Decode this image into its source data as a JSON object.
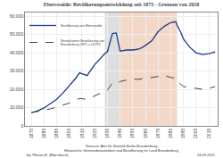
{
  "chart_data": {
    "type": "line",
    "title": "Eberswalde: Bevölkerungsentwicklung seit 1875 - Grenzen von 2020",
    "x": [
      1875,
      1880,
      1885,
      1890,
      1895,
      1900,
      1905,
      1910,
      1913,
      1919,
      1925,
      1930,
      1933,
      1935,
      1939,
      1942,
      1945,
      1946,
      1950,
      1955,
      1960,
      1964,
      1970,
      1975,
      1980,
      1985,
      1989,
      1990,
      1993,
      1995,
      2000,
      2005,
      2010,
      2015,
      2017,
      2020
    ],
    "series": [
      {
        "name": "Bevölkerung von Eberswalde",
        "color": "#1a3a8a",
        "line_style": "solid",
        "values": [
          7200,
          8200,
          9800,
          12000,
          14500,
          18000,
          22000,
          26000,
          29000,
          27500,
          33500,
          37500,
          39500,
          40500,
          50500,
          50800,
          41000,
          41000,
          41500,
          41500,
          42000,
          43500,
          46500,
          51500,
          54500,
          56500,
          57000,
          55000,
          51000,
          47500,
          43000,
          40000,
          39000,
          39500,
          40000,
          40500
        ]
      },
      {
        "name": "Normalisierte Bevölkerung von\nBrandenburg 1875 = 14.970",
        "color": "#444444",
        "line_style": "dashed",
        "values": [
          7200,
          7800,
          8500,
          9300,
          10200,
          11200,
          12500,
          14000,
          15000,
          14500,
          16500,
          18000,
          18500,
          19500,
          23500,
          24500,
          24000,
          24500,
          25000,
          25500,
          25500,
          26000,
          26500,
          27000,
          27500,
          26500,
          26000,
          24500,
          22500,
          21500,
          21000,
          20500,
          20000,
          20500,
          21000,
          21500
        ]
      }
    ],
    "shaded_periods": [
      {
        "start": 1933,
        "end": 1945,
        "color": "#c8c8c8"
      },
      {
        "start": 1945,
        "end": 1990,
        "color": "#e8b090"
      }
    ],
    "annotations": [
      "Sources: Amt für Statistik Berlin-Brandenburg",
      "Historische Gemeindestatistiken und Bevölkerung im Land Brandenburg",
      "by: Florian H. (Ebersbach)",
      "24.09.2021"
    ],
    "xlim": [
      1870,
      2022
    ],
    "xticks": [
      1875,
      1885,
      1895,
      1905,
      1915,
      1925,
      1935,
      1945,
      1955,
      1965,
      1975,
      1985,
      1995,
      2005,
      2015
    ],
    "ylim": [
      0,
      62000
    ],
    "yticks": [
      0,
      {
        "value": 10000,
        "label": "10.000"
      },
      {
        "value": 20000,
        "label": "20.000"
      },
      {
        "value": 30000,
        "label": "30.000"
      },
      {
        "value": 40000,
        "label": "40.000"
      },
      {
        "value": 50000,
        "label": "50.000"
      },
      {
        "value": 60000,
        "label": "60.000"
      }
    ],
    "grid": true,
    "legend": "upper left"
  }
}
